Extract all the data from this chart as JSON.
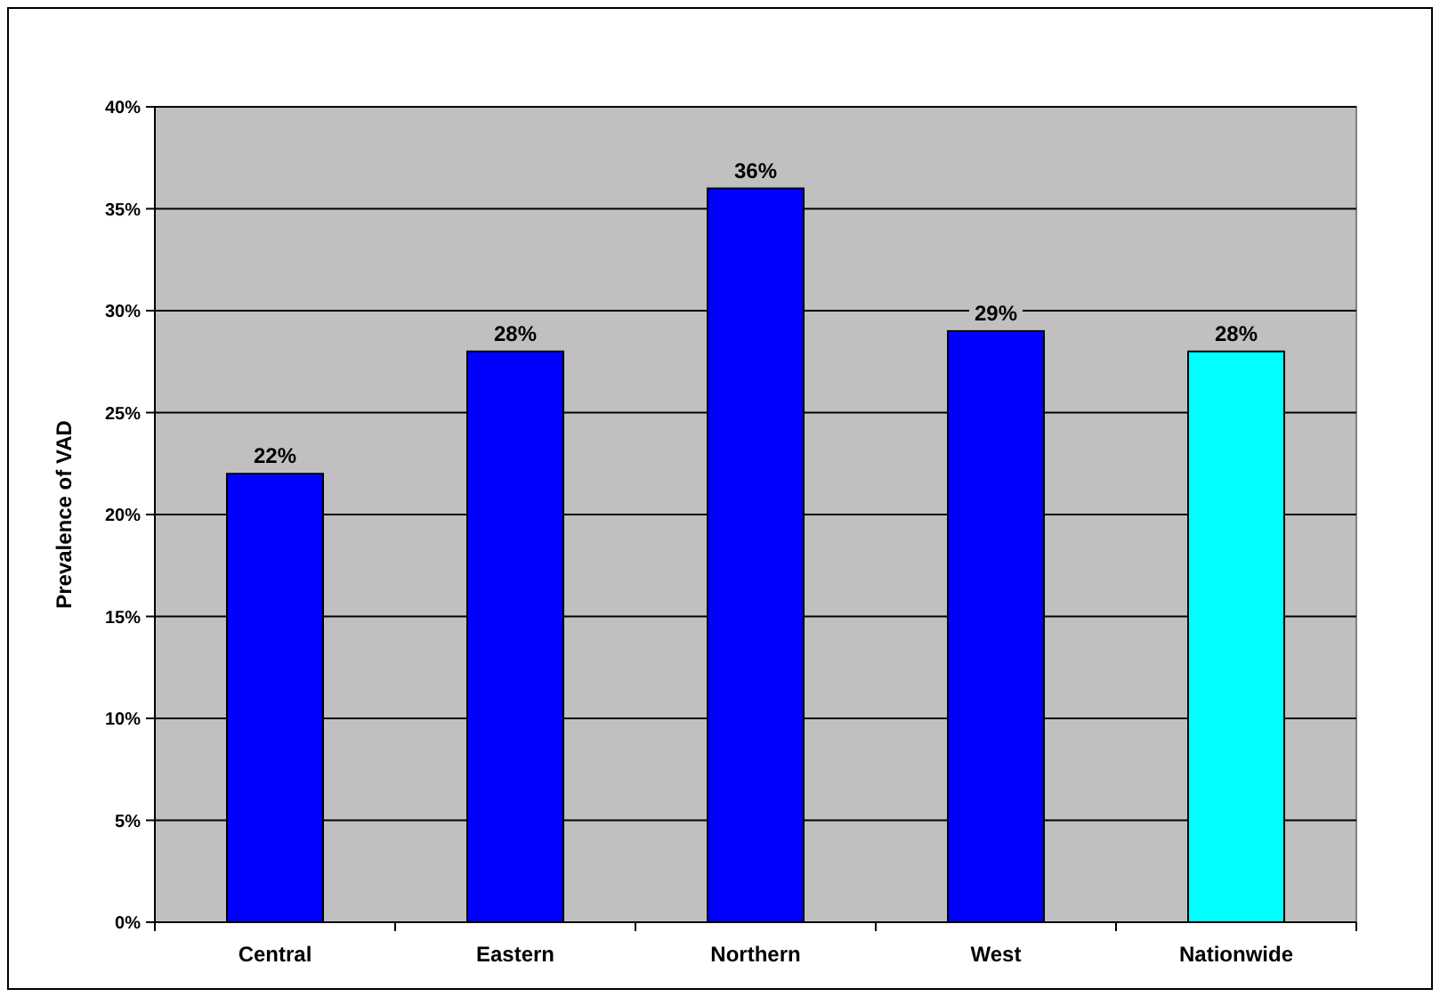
{
  "chart_data": {
    "type": "bar",
    "ylabel": "Prevalence of VAD",
    "categories": [
      "Central",
      "Eastern",
      "Northern",
      "West",
      "Nationwide"
    ],
    "values": [
      22,
      28,
      36,
      29,
      28
    ],
    "colors": [
      "#0000ff",
      "#0000ff",
      "#0000ff",
      "#0000ff",
      "#00ffff"
    ],
    "value_labels": [
      "22%",
      "28%",
      "36%",
      "29%",
      "28%"
    ],
    "ylim": [
      0,
      40
    ],
    "yticks": [
      {
        "value": 0,
        "label": "0%"
      },
      {
        "value": 5,
        "label": "5%"
      },
      {
        "value": 10,
        "label": "10%"
      },
      {
        "value": 15,
        "label": "15%"
      },
      {
        "value": 20,
        "label": "20%"
      },
      {
        "value": 25,
        "label": "25%"
      },
      {
        "value": 30,
        "label": "30%"
      },
      {
        "value": 35,
        "label": "35%"
      },
      {
        "value": 40,
        "label": "40%"
      }
    ],
    "grid": "y"
  }
}
